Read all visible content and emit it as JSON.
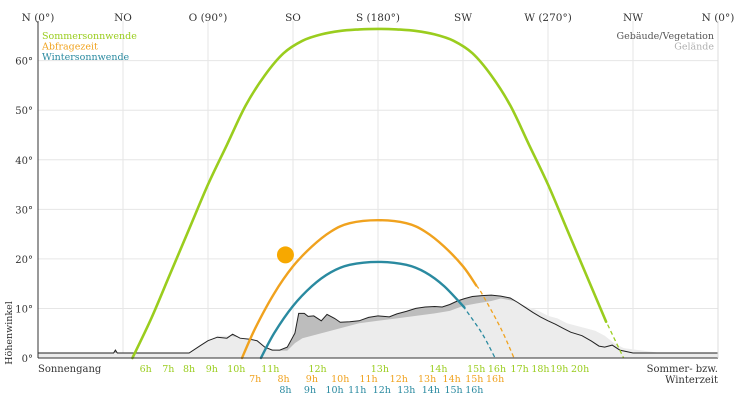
{
  "chart_data": {
    "type": "line",
    "x_axis": {
      "range_deg": [
        0,
        360
      ],
      "top_labels": [
        {
          "az": 0,
          "label": "N (0°)"
        },
        {
          "az": 45,
          "label": "NO"
        },
        {
          "az": 90,
          "label": "O (90°)"
        },
        {
          "az": 135,
          "label": "SO"
        },
        {
          "az": 180,
          "label": "S (180°)"
        },
        {
          "az": 225,
          "label": "SW"
        },
        {
          "az": 270,
          "label": "W (270°)"
        },
        {
          "az": 315,
          "label": "NW"
        },
        {
          "az": 360,
          "label": "N (0°)"
        }
      ]
    },
    "y_axis": {
      "label": "Höhenwinkel",
      "range_deg": [
        0,
        68
      ],
      "ticks": [
        {
          "v": 0,
          "label": "0°"
        },
        {
          "v": 10,
          "label": "10°"
        },
        {
          "v": 20,
          "label": "20°"
        },
        {
          "v": 30,
          "label": "30°"
        },
        {
          "v": 40,
          "label": "40°"
        },
        {
          "v": 50,
          "label": "50°"
        },
        {
          "v": 60,
          "label": "60°"
        }
      ]
    },
    "grid": true,
    "legend_left": [
      {
        "label": "Sommersonnwende",
        "color": "#9acd1e"
      },
      {
        "label": "Abfragezeit",
        "color": "#f0a21e"
      },
      {
        "label": "Wintersonnwende",
        "color": "#2a8aa0"
      }
    ],
    "legend_right": [
      {
        "label": "Gebäude/Vegetation",
        "color": "#555555"
      },
      {
        "label": "Gelände",
        "color": "#b0b0b0"
      }
    ],
    "series": [
      {
        "name": "Sommersonnwende",
        "color": "#9acd1e",
        "points": [
          [
            50,
            0
          ],
          [
            60,
            8
          ],
          [
            70,
            17
          ],
          [
            80,
            26
          ],
          [
            90,
            35
          ],
          [
            100,
            43
          ],
          [
            110,
            51
          ],
          [
            120,
            57
          ],
          [
            130,
            61.5
          ],
          [
            140,
            64
          ],
          [
            150,
            65.3
          ],
          [
            160,
            66
          ],
          [
            170,
            66.3
          ],
          [
            180,
            66.4
          ],
          [
            190,
            66.3
          ],
          [
            200,
            66
          ],
          [
            210,
            65.3
          ],
          [
            220,
            64
          ],
          [
            230,
            61.5
          ],
          [
            240,
            57
          ],
          [
            250,
            51
          ],
          [
            260,
            43
          ],
          [
            270,
            35
          ],
          [
            280,
            26
          ],
          [
            290,
            17
          ],
          [
            300,
            8
          ],
          [
            310,
            0
          ]
        ],
        "visible_until": 300
      },
      {
        "name": "Abfragezeit",
        "color": "#f0a21e",
        "points": [
          [
            108,
            0
          ],
          [
            115,
            6
          ],
          [
            125,
            13
          ],
          [
            135,
            18.5
          ],
          [
            145,
            22.5
          ],
          [
            155,
            25.5
          ],
          [
            165,
            27.2
          ],
          [
            180,
            27.8
          ],
          [
            195,
            27.2
          ],
          [
            205,
            25.5
          ],
          [
            215,
            22.5
          ],
          [
            225,
            18.5
          ],
          [
            235,
            13
          ],
          [
            245,
            6
          ],
          [
            252,
            0
          ]
        ],
        "visible_until": 232
      },
      {
        "name": "Wintersonnwende",
        "color": "#2a8aa0",
        "points": [
          [
            118,
            0
          ],
          [
            125,
            5
          ],
          [
            135,
            10.5
          ],
          [
            145,
            14.5
          ],
          [
            155,
            17.3
          ],
          [
            165,
            18.8
          ],
          [
            180,
            19.4
          ],
          [
            195,
            18.8
          ],
          [
            205,
            17.3
          ],
          [
            215,
            14.5
          ],
          [
            225,
            10.5
          ],
          [
            235,
            5
          ],
          [
            242,
            0
          ]
        ],
        "visible_until": 225
      }
    ],
    "sun_marker": {
      "az": 131,
      "alt": 20.8,
      "color": "#f7a800"
    },
    "gelaende_profile": [
      [
        0,
        1
      ],
      [
        30,
        1
      ],
      [
        60,
        1
      ],
      [
        80,
        1
      ],
      [
        88,
        3
      ],
      [
        95,
        4.5
      ],
      [
        102,
        4.5
      ],
      [
        108,
        4
      ],
      [
        113,
        4
      ],
      [
        118,
        3
      ],
      [
        122,
        2
      ],
      [
        127,
        1.5
      ],
      [
        132,
        1.5
      ],
      [
        136,
        3
      ],
      [
        140,
        4
      ],
      [
        145,
        4.5
      ],
      [
        150,
        5
      ],
      [
        155,
        5.5
      ],
      [
        160,
        6
      ],
      [
        165,
        6.5
      ],
      [
        170,
        7
      ],
      [
        180,
        7.5
      ],
      [
        190,
        8
      ],
      [
        200,
        8.5
      ],
      [
        210,
        9
      ],
      [
        218,
        9.5
      ],
      [
        225,
        10.5
      ],
      [
        232,
        11
      ],
      [
        240,
        11.5
      ],
      [
        245,
        12
      ],
      [
        252,
        11.5
      ],
      [
        258,
        10.5
      ],
      [
        265,
        9.5
      ],
      [
        270,
        8.5
      ],
      [
        275,
        8
      ],
      [
        280,
        7
      ],
      [
        285,
        6.5
      ],
      [
        290,
        6
      ],
      [
        295,
        5.5
      ],
      [
        300,
        4.5
      ],
      [
        305,
        3
      ],
      [
        310,
        2
      ],
      [
        320,
        1.5
      ],
      [
        330,
        1
      ],
      [
        345,
        1
      ],
      [
        360,
        1
      ]
    ],
    "vegetation_profile": [
      [
        0,
        1
      ],
      [
        30,
        1
      ],
      [
        40,
        1
      ],
      [
        41,
        1.6
      ],
      [
        42,
        1
      ],
      [
        70,
        1
      ],
      [
        80,
        1
      ],
      [
        86,
        2.5
      ],
      [
        90,
        3.5
      ],
      [
        95,
        4.2
      ],
      [
        100,
        4
      ],
      [
        103,
        4.8
      ],
      [
        107,
        4
      ],
      [
        112,
        3.8
      ],
      [
        116,
        3.5
      ],
      [
        120,
        2.2
      ],
      [
        124,
        1.6
      ],
      [
        128,
        1.6
      ],
      [
        132,
        2.2
      ],
      [
        136,
        5
      ],
      [
        138,
        9
      ],
      [
        141,
        9
      ],
      [
        143,
        8.4
      ],
      [
        146,
        8.5
      ],
      [
        150,
        7.5
      ],
      [
        153,
        8.8
      ],
      [
        157,
        8
      ],
      [
        160,
        7.2
      ],
      [
        165,
        7.3
      ],
      [
        170,
        7.5
      ],
      [
        175,
        8.2
      ],
      [
        180,
        8.5
      ],
      [
        186,
        8.3
      ],
      [
        190,
        8.9
      ],
      [
        195,
        9.4
      ],
      [
        200,
        10
      ],
      [
        205,
        10.3
      ],
      [
        210,
        10.4
      ],
      [
        214,
        10.3
      ],
      [
        218,
        10.8
      ],
      [
        222,
        11.5
      ],
      [
        226,
        12
      ],
      [
        230,
        12.4
      ],
      [
        235,
        12.6
      ],
      [
        240,
        12.7
      ],
      [
        245,
        12.5
      ],
      [
        250,
        12.1
      ],
      [
        254,
        11.2
      ],
      [
        258,
        10.2
      ],
      [
        262,
        9.2
      ],
      [
        266,
        8.3
      ],
      [
        270,
        7.5
      ],
      [
        274,
        6.8
      ],
      [
        278,
        6
      ],
      [
        282,
        5.2
      ],
      [
        288,
        4.5
      ],
      [
        293,
        3.4
      ],
      [
        297,
        2.4
      ],
      [
        300,
        2.2
      ],
      [
        304,
        2.6
      ],
      [
        308,
        1.6
      ],
      [
        315,
        1
      ],
      [
        330,
        1
      ],
      [
        340,
        1
      ],
      [
        360,
        1
      ]
    ],
    "bottom_left_label": "Sonnengang",
    "bottom_right_label_1": "Sommer- bzw.",
    "bottom_right_label_2": "Winterzeit",
    "hour_labels_row1": [
      {
        "az": 57,
        "label": "6h",
        "color": "#9acd1e"
      },
      {
        "az": 69,
        "label": "7h",
        "color": "#9acd1e"
      },
      {
        "az": 80,
        "label": "8h",
        "color": "#9acd1e"
      },
      {
        "az": 92,
        "label": "9h",
        "color": "#9acd1e"
      },
      {
        "az": 105,
        "label": "10h",
        "color": "#9acd1e"
      },
      {
        "az": 123,
        "label": "11h",
        "color": "#9acd1e"
      },
      {
        "az": 148,
        "label": "12h",
        "color": "#9acd1e"
      },
      {
        "az": 181,
        "label": "13h",
        "color": "#9acd1e"
      },
      {
        "az": 212,
        "label": "14h",
        "color": "#9acd1e"
      },
      {
        "az": 232,
        "label": "15h",
        "color": "#9acd1e"
      },
      {
        "az": 243,
        "label": "16h",
        "color": "#9acd1e"
      },
      {
        "az": 255,
        "label": "17h",
        "color": "#9acd1e"
      },
      {
        "az": 266,
        "label": "18h",
        "color": "#9acd1e"
      },
      {
        "az": 276,
        "label": "19h",
        "color": "#9acd1e"
      },
      {
        "az": 287,
        "label": "20h",
        "color": "#9acd1e"
      }
    ],
    "hour_labels_row2": [
      {
        "az": 115,
        "label": "7h",
        "color": "#f0a21e"
      },
      {
        "az": 130,
        "label": "8h",
        "color": "#f0a21e"
      },
      {
        "az": 145,
        "label": "9h",
        "color": "#f0a21e"
      },
      {
        "az": 160,
        "label": "10h",
        "color": "#f0a21e"
      },
      {
        "az": 175,
        "label": "11h",
        "color": "#f0a21e"
      },
      {
        "az": 191,
        "label": "12h",
        "color": "#f0a21e"
      },
      {
        "az": 206,
        "label": "13h",
        "color": "#f0a21e"
      },
      {
        "az": 219,
        "label": "14h",
        "color": "#f0a21e"
      },
      {
        "az": 231,
        "label": "15h",
        "color": "#f0a21e"
      },
      {
        "az": 242,
        "label": "16h",
        "color": "#f0a21e"
      }
    ],
    "hour_labels_row3": [
      {
        "az": 131,
        "label": "8h",
        "color": "#2a8aa0"
      },
      {
        "az": 144,
        "label": "9h",
        "color": "#2a8aa0"
      },
      {
        "az": 157,
        "label": "10h",
        "color": "#2a8aa0"
      },
      {
        "az": 169,
        "label": "11h",
        "color": "#2a8aa0"
      },
      {
        "az": 182,
        "label": "12h",
        "color": "#2a8aa0"
      },
      {
        "az": 195,
        "label": "13h",
        "color": "#2a8aa0"
      },
      {
        "az": 208,
        "label": "14h",
        "color": "#2a8aa0"
      },
      {
        "az": 220,
        "label": "15h",
        "color": "#2a8aa0"
      },
      {
        "az": 231,
        "label": "16h",
        "color": "#2a8aa0"
      }
    ]
  }
}
